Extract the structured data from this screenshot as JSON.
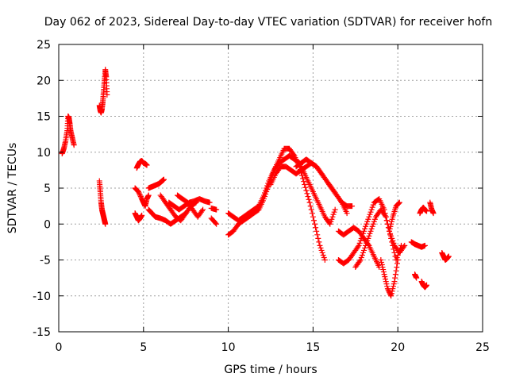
{
  "chart_data": {
    "type": "scatter",
    "title": "Day 062 of 2023, Sidereal Day-to-day VTEC variation (SDTVAR) for receiver hofn",
    "xlabel": "GPS time / hours",
    "ylabel": "SDTVAR / TECUs",
    "xlim": [
      0,
      25
    ],
    "ylim": [
      -15,
      25
    ],
    "xticks": [
      0,
      5,
      10,
      15,
      20,
      25
    ],
    "yticks": [
      -15,
      -10,
      -5,
      0,
      5,
      10,
      15,
      20,
      25
    ],
    "grid": true,
    "marker": "+",
    "marker_color": "#ff0000",
    "series": [
      {
        "name": "SDTVAR",
        "tracks": [
          {
            "x": [
              0.2,
              0.3,
              0.4,
              0.5,
              0.55,
              0.6,
              0.65,
              0.7,
              0.8,
              0.9
            ],
            "y": [
              9.8,
              10.5,
              11.5,
              13.0,
              15.0,
              14.8,
              14.0,
              13.0,
              12.0,
              11.0
            ]
          },
          {
            "x": [
              2.4,
              2.45,
              2.5,
              2.55,
              2.6,
              2.65,
              2.7,
              2.75,
              2.8,
              2.85
            ],
            "y": [
              16.5,
              15.8,
              15.5,
              16.0,
              17.0,
              18.5,
              20.0,
              21.5,
              20.5,
              18.0
            ]
          },
          {
            "x": [
              2.4,
              2.45,
              2.5,
              2.55,
              2.6,
              2.65,
              2.7,
              2.75
            ],
            "y": [
              6.0,
              4.5,
              3.0,
              2.0,
              1.5,
              1.0,
              0.5,
              0.0
            ]
          },
          {
            "x": [
              4.6,
              4.7,
              4.8,
              4.9,
              5.0,
              5.1,
              5.2
            ],
            "y": [
              7.8,
              8.3,
              8.7,
              8.8,
              8.5,
              8.4,
              8.2
            ]
          },
          {
            "x": [
              4.5,
              4.7,
              4.9,
              5.0,
              5.1,
              5.2,
              5.3
            ],
            "y": [
              5.0,
              4.5,
              3.5,
              3.0,
              2.5,
              3.5,
              4.0
            ]
          },
          {
            "x": [
              4.5,
              4.6,
              4.7,
              4.8,
              4.9
            ],
            "y": [
              1.5,
              1.0,
              0.5,
              0.8,
              1.2
            ]
          },
          {
            "x": [
              5.3,
              5.5,
              5.7,
              5.9,
              6.0,
              6.1,
              6.2
            ],
            "y": [
              5.0,
              5.2,
              5.4,
              5.6,
              5.8,
              6.0,
              6.2
            ]
          },
          {
            "x": [
              5.3,
              5.5,
              5.7,
              6.0,
              6.3,
              6.6,
              6.9,
              7.2,
              7.5
            ],
            "y": [
              2.0,
              1.5,
              1.0,
              0.8,
              0.5,
              0.0,
              0.5,
              1.0,
              1.5
            ]
          },
          {
            "x": [
              6.0,
              6.3,
              6.6,
              6.9,
              7.2,
              7.5,
              7.8,
              8.1
            ],
            "y": [
              4.0,
              3.0,
              2.0,
              1.0,
              0.5,
              1.5,
              2.5,
              3.0
            ]
          },
          {
            "x": [
              6.5,
              6.8,
              7.1,
              7.4,
              7.7,
              8.0,
              8.3,
              8.6,
              8.9
            ],
            "y": [
              3.0,
              2.5,
              2.0,
              2.5,
              3.0,
              3.2,
              3.5,
              3.2,
              3.0
            ]
          },
          {
            "x": [
              7.0,
              7.3,
              7.6,
              7.9,
              8.2,
              8.5
            ],
            "y": [
              4.0,
              3.5,
              3.0,
              2.0,
              1.0,
              2.0
            ]
          },
          {
            "x": [
              9.0,
              9.3
            ],
            "y": [
              2.2,
              2.0
            ]
          },
          {
            "x": [
              9.0,
              9.3
            ],
            "y": [
              0.8,
              0.0
            ]
          },
          {
            "x": [
              10.0,
              10.3,
              10.6,
              10.9,
              11.2,
              11.5,
              11.8,
              12.1,
              12.4,
              12.7,
              13.0,
              13.3,
              13.6,
              13.9,
              14.2,
              14.5,
              14.8,
              15.1,
              15.4,
              15.7
            ],
            "y": [
              -1.5,
              -1.0,
              0.0,
              0.5,
              1.0,
              1.5,
              2.0,
              3.5,
              5.5,
              7.5,
              9.0,
              10.5,
              10.5,
              9.5,
              8.0,
              5.5,
              3.0,
              0.0,
              -3.0,
              -5.0
            ]
          },
          {
            "x": [
              10.0,
              10.3,
              10.6,
              10.9,
              11.2,
              11.5,
              11.8,
              12.1,
              12.4,
              12.7,
              13.0,
              13.3,
              13.6,
              13.9,
              14.2,
              14.5,
              14.8,
              15.1,
              15.4,
              15.7,
              16.0,
              16.3
            ],
            "y": [
              1.5,
              1.0,
              0.5,
              1.0,
              1.5,
              2.0,
              2.5,
              4.0,
              6.0,
              7.5,
              8.5,
              9.0,
              9.5,
              9.0,
              8.5,
              7.0,
              5.5,
              4.0,
              2.5,
              1.0,
              0.0,
              2.0
            ]
          },
          {
            "x": [
              12.5,
              12.8,
              13.1,
              13.4,
              13.7,
              14.0,
              14.3,
              14.6,
              14.9,
              15.2,
              15.5,
              15.8,
              16.1,
              16.4,
              16.7,
              17.0
            ],
            "y": [
              5.5,
              7.0,
              8.0,
              8.0,
              7.5,
              7.0,
              7.5,
              8.0,
              8.5,
              8.0,
              7.0,
              6.0,
              5.0,
              4.0,
              3.0,
              1.5
            ]
          },
          {
            "x": [
              14.0,
              14.3,
              14.6,
              14.9,
              15.2,
              15.5,
              15.8,
              16.1,
              16.4,
              16.7,
              17.0,
              17.3
            ],
            "y": [
              8.0,
              8.5,
              9.0,
              8.5,
              8.0,
              7.0,
              6.0,
              5.0,
              4.0,
              3.0,
              2.5,
              2.5
            ]
          },
          {
            "x": [
              16.5,
              16.8,
              17.1,
              17.4,
              17.7,
              18.0,
              18.3,
              18.6,
              18.9
            ],
            "y": [
              -1.0,
              -1.5,
              -1.0,
              -0.5,
              -1.0,
              -2.0,
              -3.0,
              -4.5,
              -6.0
            ]
          },
          {
            "x": [
              16.5,
              16.8,
              17.1,
              17.4,
              17.7,
              18.0,
              18.3,
              18.6,
              18.9,
              19.2,
              19.5,
              19.8,
              20.1,
              20.4
            ],
            "y": [
              -5.0,
              -5.5,
              -5.0,
              -4.0,
              -3.0,
              -1.0,
              1.0,
              3.0,
              3.5,
              2.0,
              -1.0,
              -3.0,
              -4.0,
              -3.0
            ]
          },
          {
            "x": [
              17.5,
              17.8,
              18.1,
              18.4,
              18.7,
              19.0,
              19.3,
              19.6,
              19.9,
              20.2
            ],
            "y": [
              -6.0,
              -5.0,
              -3.0,
              -1.0,
              1.0,
              2.0,
              1.0,
              -2.0,
              -5.0,
              -3.0
            ]
          },
          {
            "x": [
              19.0,
              19.2,
              19.4,
              19.6,
              19.8,
              20.0
            ],
            "y": [
              -5.0,
              -7.0,
              -9.0,
              -10.0,
              -8.0,
              -5.0
            ]
          },
          {
            "x": [
              19.5,
              19.7,
              19.9,
              20.1
            ],
            "y": [
              -1.0,
              1.0,
              2.5,
              3.0
            ]
          },
          {
            "x": [
              20.8,
              21.0,
              21.2,
              21.4,
              21.6
            ],
            "y": [
              -2.5,
              -2.8,
              -3.0,
              -3.2,
              -3.0
            ]
          },
          {
            "x": [
              21.3,
              21.4,
              21.5,
              21.6,
              21.7
            ],
            "y": [
              1.5,
              2.0,
              2.3,
              2.0,
              1.8
            ]
          },
          {
            "x": [
              21.0,
              21.1
            ],
            "y": [
              -7.0,
              -7.5
            ]
          },
          {
            "x": [
              21.4,
              21.5,
              21.6,
              21.7
            ],
            "y": [
              -8.0,
              -8.5,
              -8.8,
              -8.5
            ]
          },
          {
            "x": [
              21.9,
              22.0,
              22.1
            ],
            "y": [
              3.0,
              2.0,
              1.5
            ]
          },
          {
            "x": [
              22.6,
              22.7,
              22.8,
              22.9,
              23.0
            ],
            "y": [
              -4.0,
              -4.5,
              -5.0,
              -4.8,
              -4.5
            ]
          }
        ]
      }
    ]
  }
}
